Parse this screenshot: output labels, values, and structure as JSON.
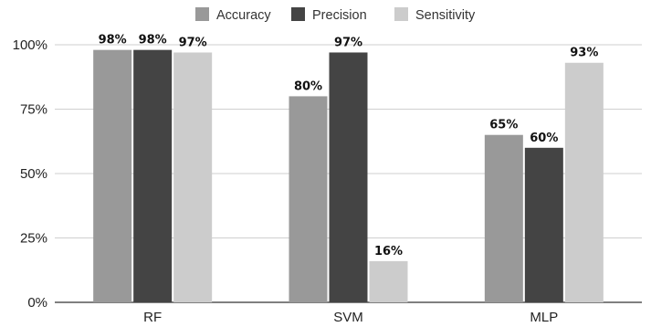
{
  "chart_data": {
    "type": "bar",
    "categories": [
      "RF",
      "SVM",
      "MLP"
    ],
    "series": [
      {
        "name": "Accuracy",
        "values": [
          98,
          80,
          65
        ],
        "labels": [
          "98%",
          "80%",
          "65%"
        ],
        "color": "#999999"
      },
      {
        "name": "Precision",
        "values": [
          98,
          97,
          60
        ],
        "labels": [
          "98%",
          "97%",
          "60%"
        ],
        "color": "#444444"
      },
      {
        "name": "Sensitivity",
        "values": [
          97,
          16,
          93
        ],
        "labels": [
          "97%",
          "16%",
          "93%"
        ],
        "color": "#cccccc"
      }
    ],
    "ylim": [
      0,
      100
    ],
    "yticks": [
      0,
      25,
      50,
      75,
      100
    ],
    "ytick_labels": [
      "0%",
      "25%",
      "50%",
      "75%",
      "100%"
    ],
    "grid": true,
    "legend_position": "top-center",
    "title": "",
    "xlabel": "",
    "ylabel": ""
  }
}
